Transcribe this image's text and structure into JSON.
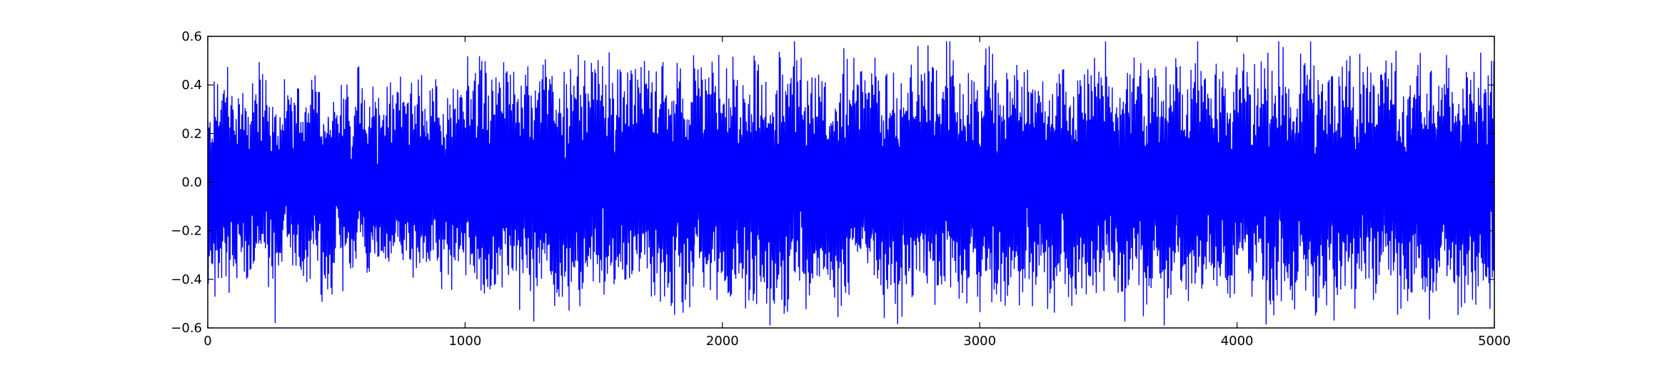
{
  "chart_data": {
    "type": "line",
    "title": "",
    "xlabel": "",
    "ylabel": "",
    "xlim": [
      0,
      5000
    ],
    "ylim": [
      -0.6,
      0.6
    ],
    "xticks": [
      0,
      1000,
      2000,
      3000,
      4000,
      5000
    ],
    "xtick_labels": [
      "0",
      "1000",
      "2000",
      "3000",
      "4000",
      "5000"
    ],
    "yticks": [
      -0.6,
      -0.4,
      -0.2,
      0.0,
      0.2,
      0.4,
      0.6
    ],
    "ytick_labels": [
      "−0.6",
      "−0.4",
      "−0.2",
      "0.0",
      "0.2",
      "0.4",
      "0.6"
    ],
    "grid": false,
    "legend": "none",
    "series": [
      {
        "color": "#0000ff",
        "n_points": 5001,
        "segments": [
          {
            "x_start": 0,
            "x_end": 1030,
            "amplitude": 0.38
          },
          {
            "x_start": 1030,
            "x_end": 5000,
            "amplitude": 0.46
          }
        ],
        "max": 0.58,
        "min": -0.59
      }
    ]
  }
}
